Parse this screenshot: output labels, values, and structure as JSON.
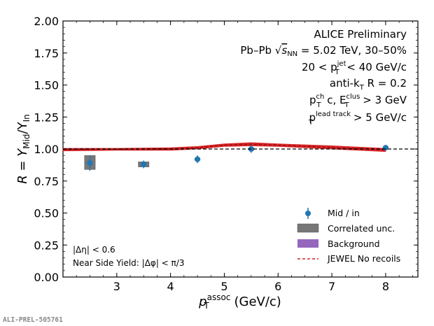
{
  "chart_data": {
    "type": "scatter",
    "xlabel": "p_T^assoc (GeV/c)",
    "ylabel": "R = Y_Mid/Y_In",
    "xlim": [
      2.0,
      8.6
    ],
    "ylim": [
      0.0,
      2.0
    ],
    "xticks": [
      3,
      4,
      5,
      6,
      7,
      8
    ],
    "yticks": [
      0.0,
      0.25,
      0.5,
      0.75,
      1.0,
      1.25,
      1.5,
      1.75,
      2.0
    ],
    "reference_line": 1.0,
    "legend_position": "lower-right",
    "series": [
      {
        "name": "Mid / in",
        "kind": "points",
        "color": "#1f77b4",
        "x": [
          2.5,
          3.5,
          4.5,
          5.5,
          8.0
        ],
        "y": [
          0.89,
          0.88,
          0.92,
          1.0,
          1.01
        ],
        "xerr": [
          0.0,
          0.0,
          0.0,
          0.0,
          0.0
        ],
        "yerr": [
          0.06,
          0.03,
          0.03,
          0.03,
          0.01
        ]
      },
      {
        "name": "Correlated unc.",
        "kind": "boxes",
        "color": "#555555",
        "x": [
          2.5,
          3.5,
          4.5,
          5.5,
          8.0
        ],
        "half_width": [
          0.1,
          0.1,
          0.05,
          0.05,
          0.05
        ],
        "low": [
          0.84,
          0.86,
          0.92,
          1.0,
          1.01
        ],
        "high": [
          0.95,
          0.9,
          0.92,
          1.0,
          1.01
        ]
      },
      {
        "name": "Background",
        "kind": "band",
        "color": "#9467bd",
        "x": [],
        "low": [],
        "high": []
      },
      {
        "name": "JEWEL No recoils",
        "kind": "band-line",
        "color": "#d62728",
        "x": [
          2.0,
          3.0,
          4.0,
          4.5,
          5.0,
          5.5,
          6.0,
          7.0,
          8.0
        ],
        "low": [
          0.985,
          0.99,
          0.99,
          1.0,
          1.02,
          1.025,
          1.02,
          1.0,
          0.98
        ],
        "high": [
          1.005,
          1.005,
          1.01,
          1.02,
          1.04,
          1.05,
          1.04,
          1.025,
          1.005
        ],
        "line": [
          0.995,
          0.998,
          1.0,
          1.01,
          1.03,
          1.037,
          1.03,
          1.012,
          0.993
        ]
      }
    ],
    "annotations": {
      "top_right": [
        "ALICE Preliminary",
        "Pb–Pb √sNN = 5.02 TeV, 30–50%",
        "20 < p_T^jet < 40 GeV/c",
        "anti-k_T R = 0.2",
        "p_T^ch c, E_T^clus > 3 GeV",
        "p_T^lead track > 5 GeV/c"
      ],
      "bottom_left": [
        "|Δη| < 0.6",
        "Near Side Yield: |Δφ| < π/3"
      ]
    }
  },
  "labels": {
    "title_line1": "ALICE Preliminary",
    "pbpb_prefix": "Pb–Pb ",
    "sqrt_s": "s",
    "nn_sub": "NN",
    "pbpb_suffix": " = 5.02 TeV, 30–50%",
    "jet_prefix": "20 < p",
    "jet_sup": "jet",
    "jet_sub": "T",
    "jet_suffix": " < 40 GeV/c",
    "antikt_prefix": "anti-k",
    "antikt_sub": "T",
    "antikt_suffix": " R = 0.2",
    "clus_p": "p",
    "clus_sup1": "ch",
    "clus_sub1": "T",
    "clus_mid": " c, E",
    "clus_sup2": "clus",
    "clus_sub2": "T",
    "clus_suffix": " > 3 GeV",
    "lead_p": "p",
    "lead_sup": "lead track",
    "lead_sub": "T",
    "lead_suffix": " > 5 GeV/c",
    "deta": "|Δη| < 0.6",
    "nsy": "Near Side Yield: |Δφ| < π/3",
    "ylabel_R": "R = Y",
    "ylabel_mid": "Mid",
    "ylabel_slash": "/Y",
    "ylabel_in": "In",
    "xlabel_p": "p",
    "xlabel_sup": "assoc",
    "xlabel_sub": "T",
    "xlabel_units": " (GeV/c)",
    "legend_points": "Mid / in",
    "legend_corr": "Correlated unc.",
    "legend_bkg": "Background",
    "legend_jewel": "JEWEL No recoils",
    "footer": "ALI-PREL-505761"
  }
}
